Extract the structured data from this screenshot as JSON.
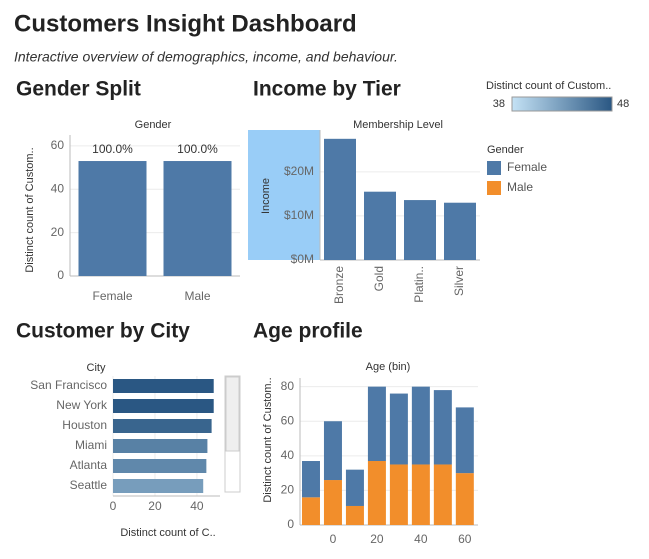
{
  "header": {
    "title": "Customers Insight Dashboard",
    "subtitle": "Interactive overview of demographics, income, and behaviour."
  },
  "color_legend": {
    "title": "Distinct count of Custom..",
    "min": 38,
    "max": 48,
    "colors": [
      "#c4e2f5",
      "#2a5783"
    ]
  },
  "chart_data": [
    {
      "type": "bar",
      "title": "Gender Split",
      "header": "Gender",
      "ylabel": "Distinct count of Custom..",
      "categories": [
        "Female",
        "Male"
      ],
      "values": [
        53,
        53
      ],
      "annotations": [
        "100.0%",
        "100.0%"
      ],
      "color": "#4e79a7",
      "ylim": [
        0,
        65
      ],
      "yticks": [
        0,
        20,
        40,
        60
      ]
    },
    {
      "type": "bar",
      "title": "Income by Tier",
      "header": "Membership Level",
      "ylabel": "Income",
      "categories": [
        "Bronze",
        "Gold",
        "Platin..",
        "Silver"
      ],
      "values": [
        27500000,
        15500000,
        13600000,
        13000000
      ],
      "color": "#4e79a7",
      "ylim": [
        0,
        29500000
      ],
      "yticks": [
        {
          "value": 0,
          "label": "$0M"
        },
        {
          "value": 10000000,
          "label": "$10M"
        },
        {
          "value": 20000000,
          "label": "$20M"
        }
      ]
    },
    {
      "type": "barh",
      "title": "Customer by City",
      "header": "City",
      "xlabel": "Distinct count of C..",
      "categories": [
        "San Francisco",
        "New York",
        "Houston",
        "Miami",
        "Atlanta",
        "Seattle"
      ],
      "values": [
        48,
        48,
        47,
        45,
        44.5,
        43
      ],
      "xlim": [
        0,
        51
      ],
      "xticks": [
        0,
        20,
        40
      ]
    },
    {
      "type": "stacked_bar",
      "title": "Age profile",
      "header": "Age (bin)",
      "ylabel": "Distinct count of Custom..",
      "legend_title": "Gender",
      "x": [
        -10,
        0,
        10,
        20,
        30,
        40,
        50,
        60
      ],
      "series": [
        {
          "name": "Female",
          "color": "#4e79a7",
          "values": [
            21,
            34,
            21,
            43,
            41,
            45,
            43,
            38
          ]
        },
        {
          "name": "Male",
          "color": "#f28e2b",
          "values": [
            16,
            26,
            11,
            37,
            35,
            35,
            35,
            30
          ]
        }
      ],
      "xlim": [
        -15,
        66
      ],
      "xticks": [
        0,
        20,
        40,
        60
      ],
      "ylim": [
        0,
        85
      ],
      "yticks": [
        0,
        20,
        40,
        60,
        80
      ]
    }
  ]
}
